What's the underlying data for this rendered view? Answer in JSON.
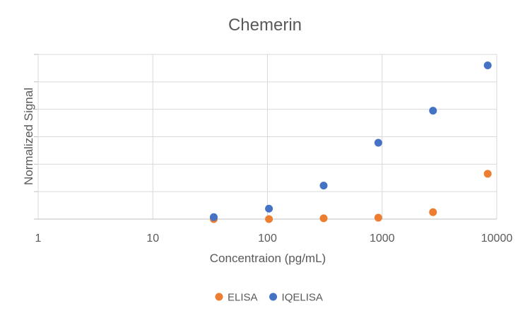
{
  "chart_data": {
    "type": "scatter",
    "title": "Chemerin",
    "xlabel": "Concentraion (pg/mL)",
    "ylabel": "Normalized Signal",
    "x_scale": "log",
    "xlim": [
      1,
      10000
    ],
    "ylim": [
      0,
      6
    ],
    "x_ticks": [
      1,
      10,
      100,
      1000,
      10000
    ],
    "x_tick_labels": [
      "1",
      "10",
      "100",
      "1000",
      "10000"
    ],
    "y_tick_labels_shown": false,
    "grid": true,
    "legend_position": "bottom",
    "series": [
      {
        "name": "ELISA",
        "color": "#ED7D31",
        "points": [
          {
            "x": 34,
            "y": 0.0
          },
          {
            "x": 103,
            "y": 0.0
          },
          {
            "x": 309,
            "y": 0.03
          },
          {
            "x": 926,
            "y": 0.05
          },
          {
            "x": 2778,
            "y": 0.25
          },
          {
            "x": 8333,
            "y": 1.65
          }
        ]
      },
      {
        "name": "IQELISA",
        "color": "#4472C4",
        "points": [
          {
            "x": 34,
            "y": 0.07
          },
          {
            "x": 103,
            "y": 0.38
          },
          {
            "x": 309,
            "y": 1.22
          },
          {
            "x": 926,
            "y": 2.78
          },
          {
            "x": 2778,
            "y": 3.95
          },
          {
            "x": 8333,
            "y": 5.6
          }
        ]
      }
    ]
  }
}
